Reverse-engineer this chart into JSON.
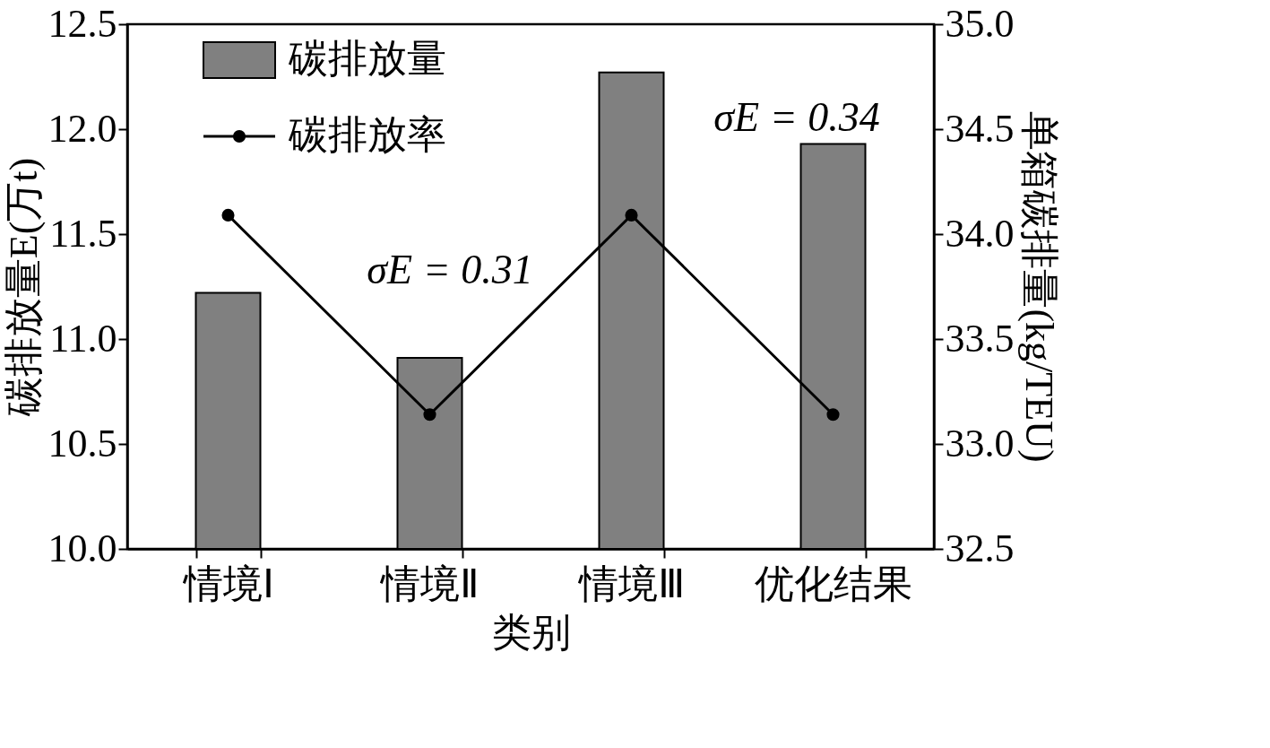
{
  "chart_data": {
    "type": "bar",
    "xlabel": "类别",
    "ylabel": "碳排放量E(万t)",
    "y2label": "单箱碳排量(kg/TEU)",
    "categories": [
      "情境Ⅰ",
      "情境Ⅱ",
      "情境Ⅲ",
      "优化结果"
    ],
    "series": [
      {
        "name": "碳排放量",
        "color": "#808080",
        "values": [
          11.22,
          10.91,
          12.27,
          11.93
        ]
      },
      {
        "name": "碳排放率",
        "type": "line",
        "axis": "y2",
        "color": "#000000",
        "values": [
          34.09,
          33.14,
          34.09,
          33.14
        ]
      }
    ],
    "ylim": [
      10.0,
      12.5
    ],
    "yticks": [
      {
        "value": 10.0,
        "label": "10.0"
      },
      {
        "value": 10.5,
        "label": "10.5"
      },
      {
        "value": 11.0,
        "label": "11.0"
      },
      {
        "value": 11.5,
        "label": "11.5"
      },
      {
        "value": 12.0,
        "label": "12.0"
      },
      {
        "value": 12.5,
        "label": "12.5"
      }
    ],
    "y2lim": [
      32.5,
      35.0
    ],
    "y2ticks": [
      {
        "value": 32.5,
        "label": "32.5"
      },
      {
        "value": 33.0,
        "label": "33.0"
      },
      {
        "value": 33.5,
        "label": "33.5"
      },
      {
        "value": 34.0,
        "label": "34.0"
      },
      {
        "value": 34.5,
        "label": "34.5"
      },
      {
        "value": 35.0,
        "label": "35.0"
      }
    ],
    "annotations": [
      "σE = 0.31",
      "σE = 0.34"
    ],
    "legend": "top left",
    "grid": false,
    "marker": "circle",
    "line_style": "solid"
  }
}
